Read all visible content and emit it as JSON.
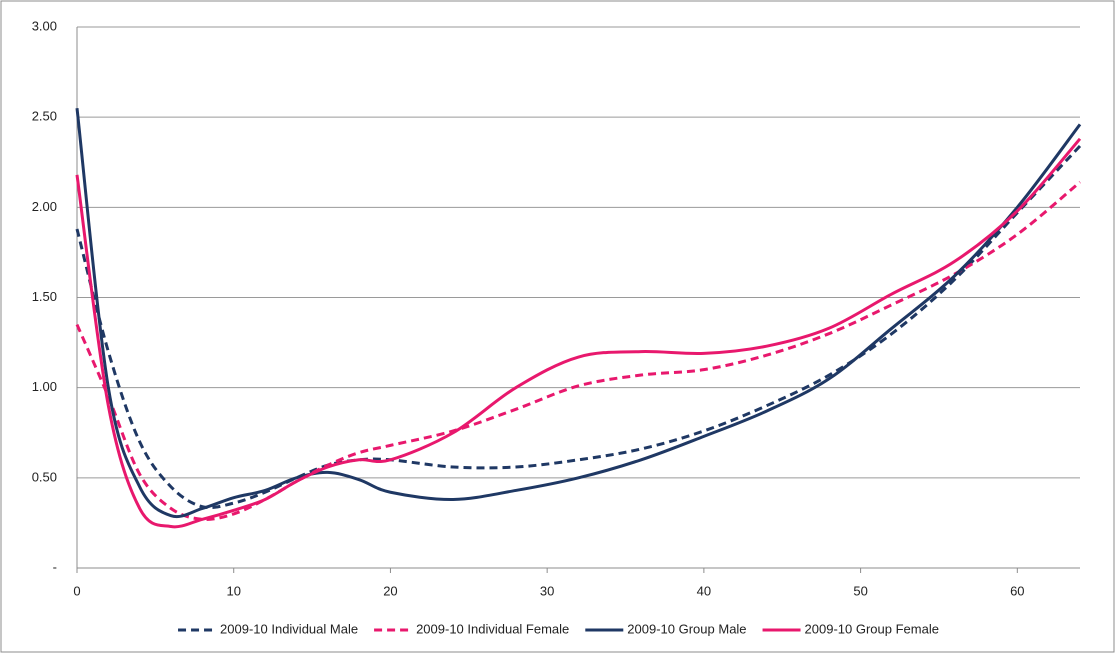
{
  "chart_data": {
    "type": "line",
    "x": [
      0,
      2,
      4,
      6,
      8,
      10,
      12,
      14,
      16,
      18,
      20,
      24,
      28,
      32,
      36,
      40,
      44,
      48,
      52,
      56,
      60,
      64
    ],
    "xlim": [
      0,
      64
    ],
    "xticks": [
      0,
      10,
      20,
      30,
      40,
      50,
      60
    ],
    "ylim": [
      0,
      3
    ],
    "yticks": [
      {
        "value": 0,
        "label": "-"
      },
      {
        "value": 0.5,
        "label": "0.50"
      },
      {
        "value": 1,
        "label": "1.00"
      },
      {
        "value": 1.5,
        "label": "1.50"
      },
      {
        "value": 2,
        "label": "2.00"
      },
      {
        "value": 2.5,
        "label": "2.50"
      },
      {
        "value": 3,
        "label": "3.00"
      }
    ],
    "grid": true,
    "legend": "bottom",
    "series": [
      {
        "name": "2009-10 Individual Male",
        "color": "#1f3864",
        "dashed": true,
        "values": [
          1.88,
          1.2,
          0.7,
          0.45,
          0.34,
          0.36,
          0.42,
          0.5,
          0.57,
          0.6,
          0.6,
          0.56,
          0.56,
          0.6,
          0.66,
          0.76,
          0.9,
          1.07,
          1.3,
          1.6,
          1.97,
          2.34
        ]
      },
      {
        "name": "2009-10 Individual Female",
        "color": "#e8186d",
        "dashed": true,
        "values": [
          1.35,
          0.95,
          0.52,
          0.33,
          0.27,
          0.3,
          0.38,
          0.48,
          0.57,
          0.64,
          0.68,
          0.76,
          0.88,
          1.01,
          1.07,
          1.1,
          1.18,
          1.3,
          1.46,
          1.63,
          1.85,
          2.14
        ]
      },
      {
        "name": "2009-10 Group Male",
        "color": "#1f3864",
        "dashed": false,
        "values": [
          2.55,
          1.0,
          0.45,
          0.29,
          0.33,
          0.39,
          0.43,
          0.5,
          0.53,
          0.49,
          0.42,
          0.38,
          0.43,
          0.5,
          0.6,
          0.73,
          0.87,
          1.05,
          1.33,
          1.62,
          2.0,
          2.46
        ]
      },
      {
        "name": "2009-10 Group Female",
        "color": "#e8186d",
        "dashed": false,
        "values": [
          2.18,
          0.9,
          0.33,
          0.23,
          0.27,
          0.32,
          0.38,
          0.48,
          0.56,
          0.6,
          0.6,
          0.75,
          1.0,
          1.17,
          1.2,
          1.19,
          1.23,
          1.33,
          1.52,
          1.7,
          1.98,
          2.38
        ]
      }
    ]
  }
}
